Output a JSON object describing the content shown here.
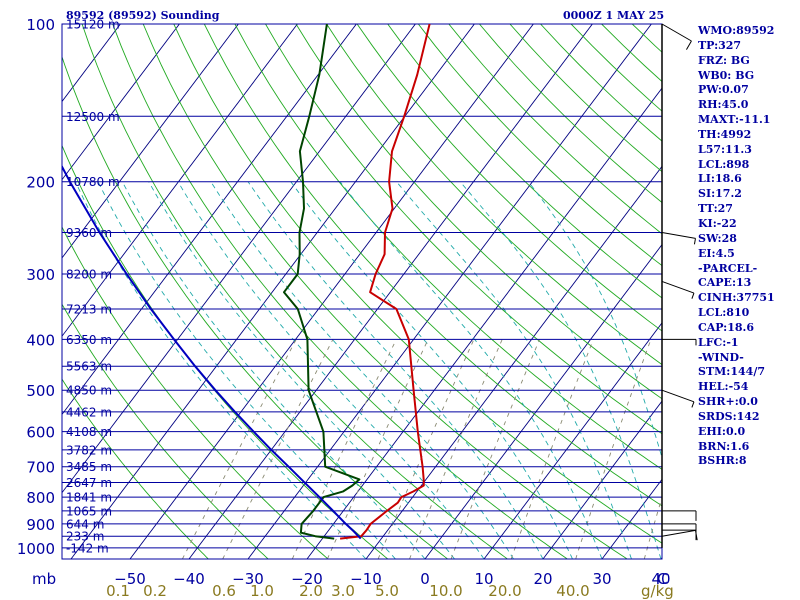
{
  "header": {
    "title": "89592 (89592) Sounding",
    "valid_time": "0000Z  1 MAY 25"
  },
  "indices": [
    "WMO:89592",
    "TP:327",
    "FRZ: BG",
    "WB0: BG",
    "PW:0.07",
    "RH:45.0",
    "MAXT:-11.1",
    "TH:4992",
    "L57:11.3",
    "LCL:898",
    "LI:18.6",
    "SI:17.2",
    "TT:27",
    "KI:-22",
    "SW:28",
    "EI:4.5",
    "-PARCEL-",
    "CAPE:13",
    "CINH:37751",
    "LCL:810",
    "CAP:18.6",
    "LFC:-1",
    "-WIND-",
    "STM:144/7",
    "HEL:-54",
    "SHR+:0.0",
    "SRDS:142",
    "EHI:0.0",
    "BRN:1.6",
    "BSHR:8"
  ],
  "colors": {
    "isobar": "#0000a0",
    "isotherm": "#000080",
    "dry_adiabat": "#22aa22",
    "moist_adiabat": "#22aaaa",
    "mixing_ratio": "#8a8a72",
    "temperature": "#c80000",
    "dewpoint": "#004400",
    "parcel": "#0000c0",
    "text": "#0000a0",
    "mixing_ratio_label": "#8a7a20"
  },
  "chart_data": {
    "type": "skew-t",
    "xlabel": "C",
    "x_units_label": "g/kg",
    "pressure_label": "mb",
    "pressure_ticks": [
      100,
      200,
      300,
      400,
      500,
      600,
      700,
      800,
      900,
      1000
    ],
    "temperature_ticks": [
      -50,
      -40,
      -30,
      -20,
      -10,
      0,
      10,
      20,
      30,
      40
    ],
    "mixing_ratio_labels": [
      "0.1",
      "0.2",
      "0.6",
      "1.0",
      "2.0",
      "3.0",
      "5.0",
      "10.0",
      "20.0",
      "40.0"
    ],
    "height_levels": [
      {
        "p": 100,
        "z": "15120 m"
      },
      {
        "p": 150,
        "z": "12500 m"
      },
      {
        "p": 200,
        "z": "10780 m"
      },
      {
        "p": 250,
        "z": "9360 m"
      },
      {
        "p": 300,
        "z": "8200 m"
      },
      {
        "p": 350,
        "z": "7213 m"
      },
      {
        "p": 400,
        "z": "6350 m"
      },
      {
        "p": 450,
        "z": "5563 m"
      },
      {
        "p": 500,
        "z": "4850 m"
      },
      {
        "p": 550,
        "z": "4462 m"
      },
      {
        "p": 600,
        "z": "4108 m"
      },
      {
        "p": 650,
        "z": "3782 m"
      },
      {
        "p": 700,
        "z": "3485 m"
      },
      {
        "p": 750,
        "z": "2647 m"
      },
      {
        "p": 800,
        "z": "1841 m"
      },
      {
        "p": 850,
        "z": "1065 m"
      },
      {
        "p": 900,
        "z": "644 m"
      },
      {
        "p": 950,
        "z": "233 m"
      },
      {
        "p": 1000,
        "z": "-142 m"
      }
    ],
    "series": [
      {
        "name": "temperature",
        "points": [
          [
            960,
            -17
          ],
          [
            950,
            -13.7
          ],
          [
            925,
            -13.6
          ],
          [
            900,
            -13.7
          ],
          [
            850,
            -12.6
          ],
          [
            820,
            -11.8
          ],
          [
            800,
            -11.9
          ],
          [
            780,
            -10.6
          ],
          [
            760,
            -9.6
          ],
          [
            740,
            -10.4
          ],
          [
            700,
            -12.2
          ],
          [
            600,
            -17.5
          ],
          [
            500,
            -23.5
          ],
          [
            400,
            -30.8
          ],
          [
            350,
            -36.8
          ],
          [
            325,
            -43.4
          ],
          [
            300,
            -44.8
          ],
          [
            275,
            -45.8
          ],
          [
            250,
            -48.5
          ],
          [
            225,
            -50.3
          ],
          [
            200,
            -54.3
          ],
          [
            175,
            -57.7
          ],
          [
            150,
            -60.1
          ],
          [
            125,
            -63.2
          ],
          [
            100,
            -67.6
          ]
        ]
      },
      {
        "name": "dewpoint",
        "points": [
          [
            960,
            -18
          ],
          [
            950,
            -21.5
          ],
          [
            935,
            -24.4
          ],
          [
            900,
            -25.4
          ],
          [
            850,
            -25.1
          ],
          [
            800,
            -25.1
          ],
          [
            780,
            -22.5
          ],
          [
            760,
            -21.7
          ],
          [
            740,
            -21.3
          ],
          [
            700,
            -28.7
          ],
          [
            600,
            -33.5
          ],
          [
            500,
            -41.3
          ],
          [
            400,
            -48
          ],
          [
            350,
            -53.5
          ],
          [
            325,
            -58
          ],
          [
            300,
            -58
          ],
          [
            275,
            -60.2
          ],
          [
            250,
            -63
          ],
          [
            225,
            -65.3
          ],
          [
            200,
            -68.9
          ],
          [
            175,
            -73.3
          ],
          [
            150,
            -76.2
          ],
          [
            125,
            -79.8
          ],
          [
            100,
            -85
          ]
        ]
      },
      {
        "name": "parcel",
        "points": [
          [
            960,
            -13.5
          ],
          [
            930,
            -15.6
          ],
          [
            900,
            -17.9
          ],
          [
            850,
            -21.7
          ],
          [
            800,
            -25.8
          ],
          [
            750,
            -30.2
          ],
          [
            700,
            -34.9
          ],
          [
            650,
            -40
          ],
          [
            600,
            -45.3
          ],
          [
            550,
            -51
          ],
          [
            500,
            -57.1
          ],
          [
            450,
            -63.6
          ],
          [
            400,
            -70.6
          ],
          [
            350,
            -78.4
          ],
          [
            300,
            -87
          ],
          [
            250,
            -96.9
          ],
          [
            200,
            -108.4
          ],
          [
            175,
            -115
          ],
          [
            150,
            -122.5
          ],
          [
            125,
            -131.1
          ],
          [
            110,
            -137
          ],
          [
            100,
            -141.2
          ]
        ]
      }
    ],
    "wind_barbs": [
      {
        "p": 950,
        "dir": 260,
        "spd": 10
      },
      {
        "p": 925,
        "dir": 270,
        "spd": 10
      },
      {
        "p": 900,
        "dir": 270,
        "spd": 10
      },
      {
        "p": 850,
        "dir": 270,
        "spd": 10
      },
      {
        "p": 400,
        "dir": 270,
        "spd": 5
      },
      {
        "p": 500,
        "dir": 290,
        "spd": 5
      },
      {
        "p": 310,
        "dir": 290,
        "spd": 5
      },
      {
        "p": 250,
        "dir": 280,
        "spd": 5
      },
      {
        "p": 100,
        "dir": 300,
        "spd": 10
      }
    ]
  }
}
